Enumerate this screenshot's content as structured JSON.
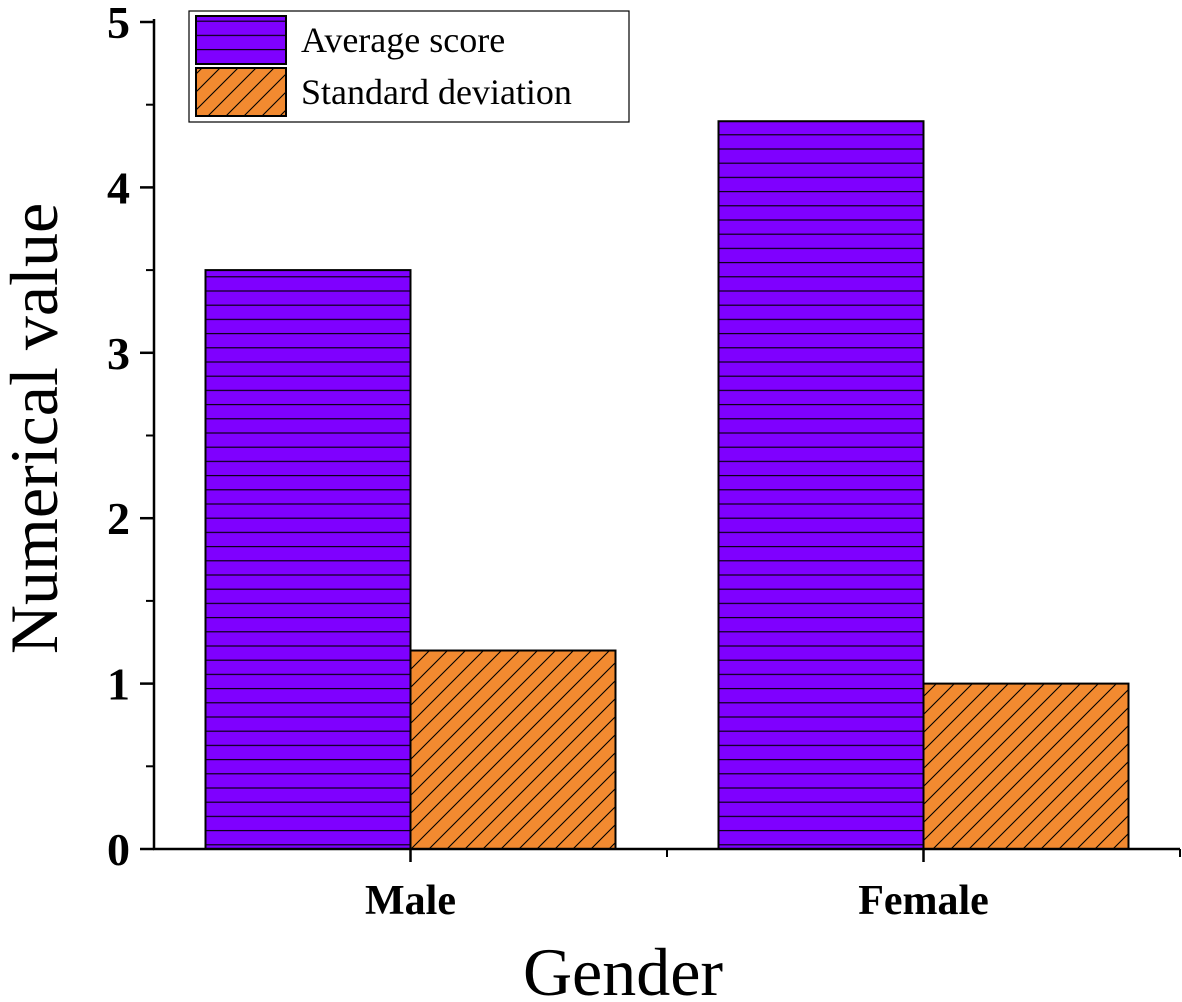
{
  "chart_data": {
    "type": "bar",
    "title": "",
    "xlabel": "Gender",
    "ylabel": "Numerical value",
    "categories": [
      "Male",
      "Female"
    ],
    "series": [
      {
        "name": "Average score",
        "values": [
          3.5,
          4.4
        ],
        "color": "#7f00ff",
        "pattern": "horizontal-lines"
      },
      {
        "name": "Standard deviation",
        "values": [
          1.2,
          1.0
        ],
        "color": "#f28a30",
        "pattern": "diagonal-lines"
      }
    ],
    "ylim": [
      0,
      5
    ],
    "yticks": [
      0,
      1,
      2,
      3,
      4,
      5
    ],
    "y_minor_tick_step": 0.5,
    "grid": false,
    "legend_position": "top-left"
  }
}
